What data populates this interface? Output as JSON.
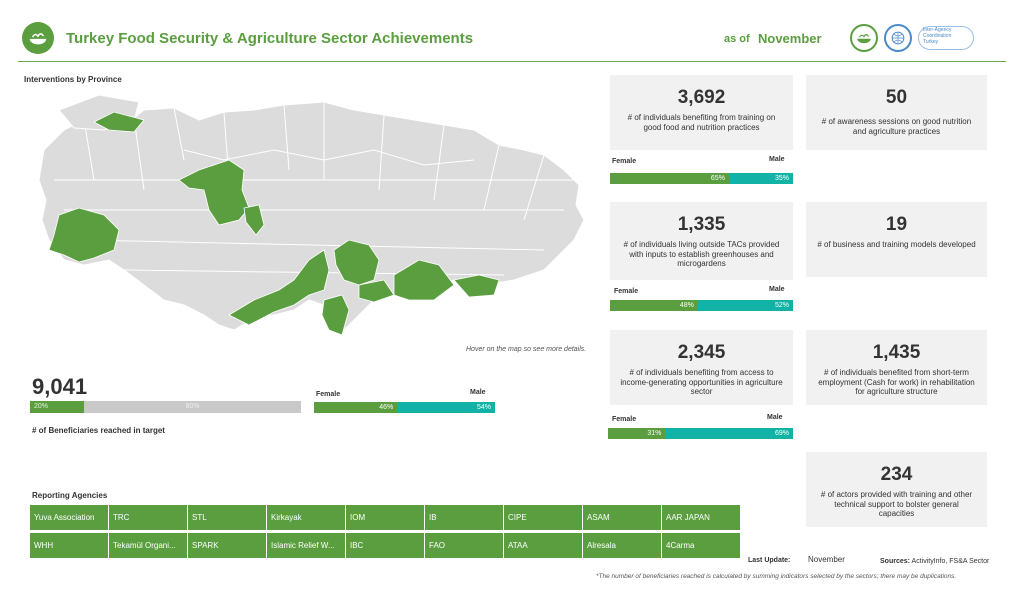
{
  "header": {
    "title": "Turkey Food Security & Agriculture Sector Achievements",
    "as_of_label": "as of",
    "month": "November",
    "logo_c_text": "Inter-Agency Coordination Turkey"
  },
  "map": {
    "title": "Interventions by Province",
    "hover_hint": "Hover on the map so see more details.",
    "colors": {
      "active": "#5a9e3f",
      "inactive": "#dcdcdc"
    }
  },
  "total": {
    "value": "9,041",
    "progress_percent": 20,
    "progress_label": "20%",
    "remaining_label": "80%",
    "caption": "# of Beneficiaries reached in target",
    "female_label": "Female",
    "male_label": "Male",
    "female_pct": 46,
    "female_pct_label": "46%",
    "male_pct_label": "54%"
  },
  "cards": [
    {
      "value": "3,692",
      "desc": "# of individuals benefiting from training on good food and nutrition practices",
      "female_label": "Female",
      "male_label": "Male",
      "female_pct": 65,
      "female_pct_label": "65%",
      "male_pct_label": "35%"
    },
    {
      "value": "1,335",
      "desc": "# of individuals living outside TACs provided with inputs to establish greenhouses and microgardens",
      "female_label": "Female",
      "male_label": "Male",
      "female_pct": 48,
      "female_pct_label": "48%",
      "male_pct_label": "52%"
    },
    {
      "value": "2,345",
      "desc": "# of individuals benefiting from access to income-generating opportunities in agriculture sector",
      "female_label": "Female",
      "male_label": "Male",
      "female_pct": 31,
      "female_pct_label": "31%",
      "male_pct_label": "69%"
    },
    {
      "value": "50",
      "desc": "# of awareness sessions on good nutrition and agriculture practices"
    },
    {
      "value": "19",
      "desc": "# of business and training models developed"
    },
    {
      "value": "1,435",
      "desc": "# of individuals benefited from short-term employment (Cash for work) in rehabilitation for agriculture structure"
    },
    {
      "value": "234",
      "desc": "# of actors provided with training and other technical support to bolster general capacities"
    }
  ],
  "agencies": {
    "title": "Reporting Agencies",
    "items": [
      "Yuva Association",
      "TRC",
      "STL",
      "Kirkayak",
      "IOM",
      "IB",
      "CIPE",
      "ASAM",
      "AAR JAPAN",
      "WHH",
      "Tekamül Organi...",
      "SPARK",
      "Islamic Relief W...",
      "IBC",
      "FAO",
      "ATAA",
      "Alresala",
      "4Carma"
    ]
  },
  "footer": {
    "last_update_label": "Last Update:",
    "last_update_value": "November",
    "sources_label": "Sources:",
    "sources_value": "ActivityInfo, FS&A Sector",
    "footnote": "*The number of beneficiaries reached is calculated by summing indicators selected by the sectors; there may be duplications."
  }
}
